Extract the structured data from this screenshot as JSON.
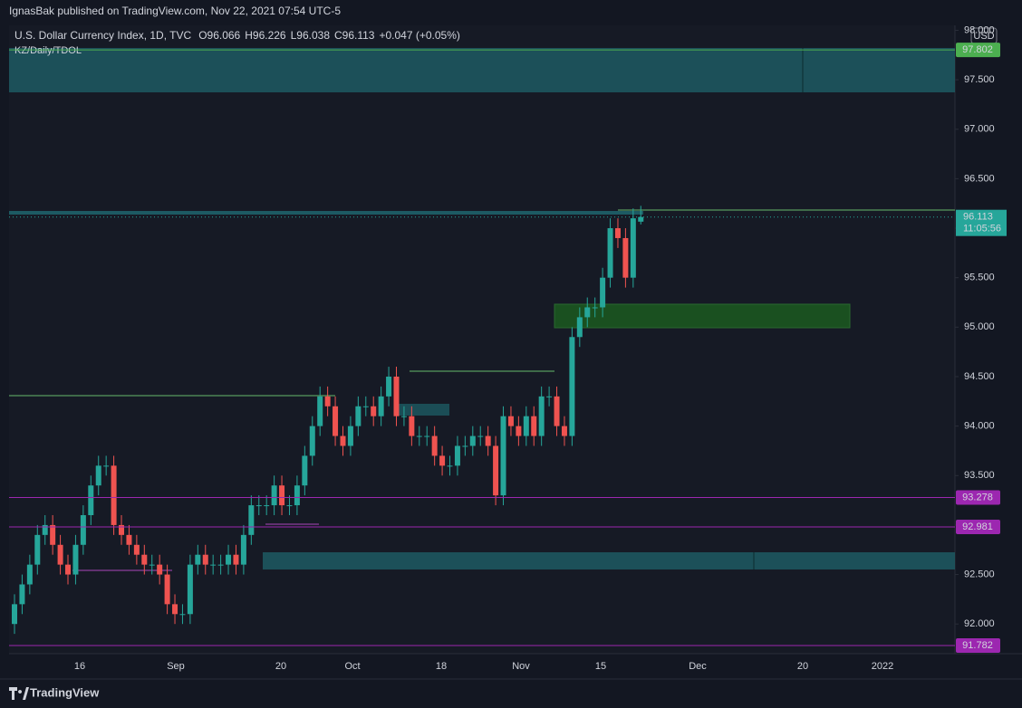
{
  "chart_data": {
    "type": "candlestick",
    "publisher": "IgnasBak published on TradingView.com, Nov 22, 2021 07:54 UTC-5",
    "symbol": "U.S. Dollar Currency Index, 1D, TVC",
    "legend_ohlc": [
      {
        "key": "O",
        "text": "96.066"
      },
      {
        "key": "H",
        "text": "96.226"
      },
      {
        "key": "L",
        "text": "96.038"
      },
      {
        "key": "C",
        "text": "96.113"
      }
    ],
    "change": "+0.047 (+0.05%)",
    "indicator": "KZ/Daily/TDOL",
    "currency": "USD",
    "brand": "TradingView",
    "up_color": "#26a69a",
    "down_color": "#ef5350",
    "open": [
      92.0,
      92.2,
      92.4,
      92.6,
      92.9,
      93.0,
      92.8,
      92.6,
      92.5,
      92.8,
      93.1,
      93.4,
      93.6,
      93.6,
      93.0,
      92.9,
      92.8,
      92.7,
      92.6,
      92.6,
      92.5,
      92.2,
      92.1,
      92.1,
      92.6,
      92.7,
      92.6,
      92.6,
      92.6,
      92.7,
      92.6,
      92.9,
      93.2,
      93.2,
      93.2,
      93.4,
      93.2,
      93.2,
      93.4,
      93.7,
      94.0,
      94.3,
      94.2,
      93.9,
      93.8,
      94.0,
      94.2,
      94.2,
      94.1,
      94.3,
      94.5,
      94.1,
      94.1,
      93.9,
      93.9,
      93.9,
      93.7,
      93.6,
      93.6,
      93.8,
      93.8,
      93.9,
      93.9,
      93.8,
      93.3,
      94.1,
      94.0,
      93.9,
      94.1,
      93.9,
      94.3,
      94.3,
      94.0,
      93.9,
      94.9,
      95.1,
      95.2,
      95.2,
      95.5,
      96.0,
      95.9,
      95.5,
      96.066
    ],
    "high": [
      92.3,
      92.5,
      92.7,
      93.0,
      93.1,
      93.1,
      92.9,
      92.7,
      92.9,
      93.2,
      93.5,
      93.7,
      93.7,
      93.7,
      93.1,
      93.0,
      92.9,
      92.8,
      92.7,
      92.7,
      92.6,
      92.3,
      92.2,
      92.7,
      92.8,
      92.8,
      92.7,
      92.7,
      92.8,
      92.8,
      93.0,
      93.3,
      93.3,
      93.3,
      93.5,
      93.5,
      93.3,
      93.5,
      93.8,
      94.1,
      94.4,
      94.4,
      94.3,
      94.0,
      94.1,
      94.3,
      94.3,
      94.3,
      94.4,
      94.6,
      94.6,
      94.2,
      94.2,
      94.0,
      94.0,
      94.0,
      93.8,
      93.7,
      93.9,
      93.9,
      94.0,
      94.0,
      94.0,
      93.9,
      94.2,
      94.2,
      94.1,
      94.2,
      94.2,
      94.4,
      94.4,
      94.4,
      94.1,
      95.0,
      95.2,
      95.3,
      95.3,
      95.6,
      96.1,
      96.1,
      96.0,
      96.2,
      96.226
    ],
    "low": [
      91.9,
      92.1,
      92.3,
      92.5,
      92.8,
      92.7,
      92.5,
      92.4,
      92.4,
      92.7,
      93.0,
      93.3,
      93.5,
      92.9,
      92.8,
      92.7,
      92.6,
      92.5,
      92.5,
      92.4,
      92.1,
      92.0,
      92.0,
      92.0,
      92.5,
      92.5,
      92.5,
      92.5,
      92.5,
      92.5,
      92.5,
      92.8,
      93.1,
      93.1,
      93.1,
      93.1,
      93.1,
      93.1,
      93.3,
      93.6,
      93.9,
      94.1,
      93.8,
      93.7,
      93.7,
      93.9,
      94.1,
      94.0,
      94.0,
      94.2,
      94.0,
      94.0,
      93.8,
      93.8,
      93.8,
      93.6,
      93.5,
      93.5,
      93.5,
      93.7,
      93.7,
      93.8,
      93.7,
      93.2,
      93.2,
      93.9,
      93.8,
      93.8,
      93.8,
      93.8,
      94.2,
      93.9,
      93.8,
      93.8,
      94.8,
      95.0,
      95.1,
      95.1,
      95.4,
      95.8,
      95.4,
      95.4,
      96.038
    ],
    "close": [
      92.2,
      92.4,
      92.6,
      92.9,
      93.0,
      92.8,
      92.6,
      92.5,
      92.8,
      93.1,
      93.4,
      93.6,
      93.6,
      93.0,
      92.9,
      92.8,
      92.7,
      92.6,
      92.6,
      92.5,
      92.2,
      92.1,
      92.1,
      92.6,
      92.7,
      92.6,
      92.6,
      92.6,
      92.7,
      92.6,
      92.9,
      93.2,
      93.2,
      93.2,
      93.4,
      93.2,
      93.2,
      93.4,
      93.7,
      94.0,
      94.3,
      94.2,
      93.9,
      93.8,
      94.0,
      94.2,
      94.2,
      94.1,
      94.3,
      94.5,
      94.1,
      94.1,
      93.9,
      93.9,
      93.9,
      93.7,
      93.6,
      93.6,
      93.8,
      93.8,
      93.9,
      93.9,
      93.8,
      93.3,
      94.1,
      94.0,
      93.9,
      94.1,
      93.9,
      94.3,
      94.3,
      94.0,
      93.9,
      94.9,
      95.1,
      95.2,
      95.2,
      95.5,
      96.0,
      95.9,
      95.5,
      96.1,
      96.113
    ],
    "x_labels": [
      "16",
      "Sep",
      "20",
      "Oct",
      "18",
      "Nov",
      "15",
      "Dec",
      "20",
      "2022"
    ],
    "ylim": [
      91.7,
      98.05
    ],
    "yticks": [
      {
        "value": 92,
        "label": "92.000"
      },
      {
        "value": 92.5,
        "label": "92.500"
      },
      {
        "value": 93,
        "label": "93.000"
      },
      {
        "value": 93.5,
        "label": "93.500"
      },
      {
        "value": 94,
        "label": "94.000"
      },
      {
        "value": 94.5,
        "label": "94.500"
      },
      {
        "value": 95,
        "label": "95.000"
      },
      {
        "value": 95.5,
        "label": "95.500"
      },
      {
        "value": 96,
        "label": "96.000"
      },
      {
        "value": 96.5,
        "label": "96.500"
      },
      {
        "value": 97,
        "label": "97.000"
      },
      {
        "value": 97.5,
        "label": "97.500"
      },
      {
        "value": 98,
        "label": "98.000"
      }
    ],
    "last_price": 96.113,
    "countdown": "11:05:56",
    "price_lines": [
      {
        "value": 97.802,
        "color": "#4caf50"
      },
      {
        "value": 93.278,
        "color": "#9c27b0"
      },
      {
        "value": 92.981,
        "color": "#9c27b0"
      },
      {
        "value": 91.782,
        "color": "#9c27b0"
      }
    ]
  }
}
